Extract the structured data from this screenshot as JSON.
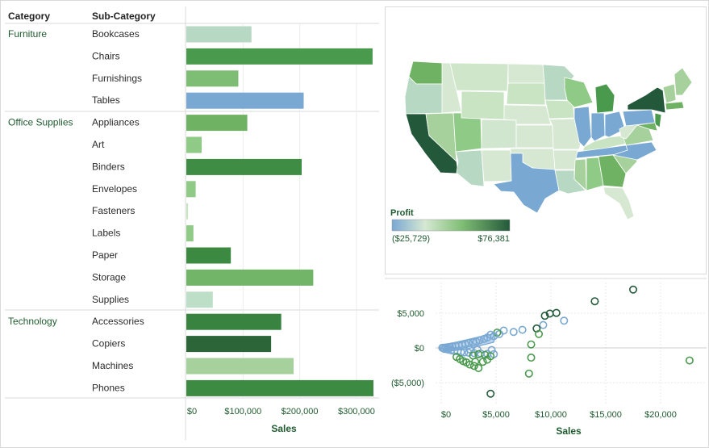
{
  "colors": {
    "negative": "#79a8d3",
    "mid": "#d6e8d2",
    "positive": "#23593a",
    "text_dark_green": "#1f5a2f"
  },
  "bar_table": {
    "headers": {
      "category": "Category",
      "sub_category": "Sub-Category"
    },
    "x_axis_title": "Sales",
    "x_ticks": [
      "$0",
      "$100,000",
      "$200,000",
      "$300,000"
    ]
  },
  "map": {
    "legend_title": "Profit",
    "legend_min": "($25,729)",
    "legend_max": "$76,381"
  },
  "scatter": {
    "x_axis_title": "Sales",
    "x_ticks": [
      "$0",
      "$5,000",
      "$10,000",
      "$15,000",
      "$20,000"
    ],
    "y_ticks": [
      "$5,000",
      "$0",
      "($5,000)"
    ]
  },
  "chart_data": [
    {
      "type": "bar",
      "title": "",
      "xlabel": "Sales",
      "xlim": [
        0,
        330000
      ],
      "color_encoding": "profit",
      "groups": [
        {
          "category": "Furniture",
          "rows": [
            {
              "sub": "Bookcases",
              "sales": 114880,
              "color": "#b7d8c2"
            },
            {
              "sub": "Chairs",
              "sales": 328449,
              "color": "#4a9a4e"
            },
            {
              "sub": "Furnishings",
              "sales": 91705,
              "color": "#7ebd74"
            },
            {
              "sub": "Tables",
              "sales": 206966,
              "color": "#79a8d3"
            }
          ]
        },
        {
          "category": "Office Supplies",
          "rows": [
            {
              "sub": "Appliances",
              "sales": 107532,
              "color": "#6fb263"
            },
            {
              "sub": "Art",
              "sales": 27119,
              "color": "#8fca86"
            },
            {
              "sub": "Binders",
              "sales": 203413,
              "color": "#3f8d45"
            },
            {
              "sub": "Envelopes",
              "sales": 16476,
              "color": "#8fca86"
            },
            {
              "sub": "Fasteners",
              "sales": 3024,
              "color": "#c9e4c2"
            },
            {
              "sub": "Labels",
              "sales": 12486,
              "color": "#8fca86"
            },
            {
              "sub": "Paper",
              "sales": 78479,
              "color": "#3c8942"
            },
            {
              "sub": "Storage",
              "sales": 223844,
              "color": "#72b568"
            },
            {
              "sub": "Supplies",
              "sales": 46674,
              "color": "#bedfc7"
            }
          ]
        },
        {
          "category": "Technology",
          "rows": [
            {
              "sub": "Accessories",
              "sales": 167380,
              "color": "#37833f"
            },
            {
              "sub": "Copiers",
              "sales": 149528,
              "color": "#2b6538"
            },
            {
              "sub": "Machines",
              "sales": 189239,
              "color": "#a6d19c"
            },
            {
              "sub": "Phones",
              "sales": 330007,
              "color": "#3d8a43"
            }
          ]
        }
      ]
    },
    {
      "type": "scatter",
      "title": "",
      "xlabel": "Sales",
      "ylabel": "",
      "xlim": [
        -300,
        23000
      ],
      "ylim": [
        -7000,
        9000
      ],
      "points": [
        {
          "x": 22638,
          "y": -1811,
          "c": "g"
        },
        {
          "x": 17500,
          "y": 8400,
          "c": "d"
        },
        {
          "x": 14000,
          "y": 6720,
          "c": "d"
        },
        {
          "x": 10500,
          "y": 5040,
          "c": "d"
        },
        {
          "x": 9900,
          "y": 4946,
          "c": "d"
        },
        {
          "x": 9450,
          "y": 4630,
          "c": "d"
        },
        {
          "x": 11200,
          "y": 3919,
          "c": "b"
        },
        {
          "x": 9300,
          "y": 3300,
          "c": "b"
        },
        {
          "x": 8700,
          "y": 2800,
          "c": "d"
        },
        {
          "x": 8900,
          "y": 2000,
          "c": "g"
        },
        {
          "x": 8200,
          "y": 500,
          "c": "g"
        },
        {
          "x": 8200,
          "y": -1400,
          "c": "g"
        },
        {
          "x": 8000,
          "y": -3700,
          "c": "g"
        },
        {
          "x": 4500,
          "y": -6600,
          "c": "d"
        },
        {
          "x": 7400,
          "y": 2600,
          "c": "b"
        },
        {
          "x": 6600,
          "y": 2300,
          "c": "b"
        },
        {
          "x": 5700,
          "y": 2500,
          "c": "b"
        },
        {
          "x": 5300,
          "y": 2000,
          "c": "b"
        },
        {
          "x": 5100,
          "y": 2200,
          "c": "g"
        },
        {
          "x": 4800,
          "y": 1700,
          "c": "b"
        },
        {
          "x": 4500,
          "y": 1900,
          "c": "b"
        },
        {
          "x": 4200,
          "y": 1500,
          "c": "b"
        },
        {
          "x": 3900,
          "y": 1300,
          "c": "b"
        },
        {
          "x": 3500,
          "y": 1100,
          "c": "b"
        },
        {
          "x": 3200,
          "y": 900,
          "c": "b"
        },
        {
          "x": 2900,
          "y": 800,
          "c": "b"
        },
        {
          "x": 2500,
          "y": 700,
          "c": "b"
        },
        {
          "x": 2200,
          "y": 550,
          "c": "b"
        },
        {
          "x": 1900,
          "y": 450,
          "c": "b"
        },
        {
          "x": 1600,
          "y": 380,
          "c": "b"
        },
        {
          "x": 1300,
          "y": 300,
          "c": "b"
        },
        {
          "x": 1000,
          "y": 220,
          "c": "b"
        },
        {
          "x": 800,
          "y": 150,
          "c": "b"
        },
        {
          "x": 600,
          "y": 100,
          "c": "b"
        },
        {
          "x": 400,
          "y": 60,
          "c": "b"
        },
        {
          "x": 200,
          "y": 30,
          "c": "b"
        },
        {
          "x": 100,
          "y": 10,
          "c": "b"
        },
        {
          "x": 300,
          "y": -150,
          "c": "b"
        },
        {
          "x": 600,
          "y": -250,
          "c": "b"
        },
        {
          "x": 900,
          "y": -350,
          "c": "b"
        },
        {
          "x": 1200,
          "y": -450,
          "c": "b"
        },
        {
          "x": 1500,
          "y": -500,
          "c": "b"
        },
        {
          "x": 1800,
          "y": -600,
          "c": "b"
        },
        {
          "x": 2100,
          "y": -650,
          "c": "b"
        },
        {
          "x": 2500,
          "y": -700,
          "c": "b"
        },
        {
          "x": 3000,
          "y": -750,
          "c": "b"
        },
        {
          "x": 3600,
          "y": -800,
          "c": "b"
        },
        {
          "x": 4200,
          "y": -850,
          "c": "b"
        },
        {
          "x": 4800,
          "y": -900,
          "c": "b"
        },
        {
          "x": 4600,
          "y": -300,
          "c": "b"
        },
        {
          "x": 3300,
          "y": -250,
          "c": "b"
        },
        {
          "x": 2600,
          "y": -200,
          "c": "b"
        },
        {
          "x": 1400,
          "y": -1300,
          "c": "g"
        },
        {
          "x": 1700,
          "y": -1600,
          "c": "g"
        },
        {
          "x": 2000,
          "y": -1900,
          "c": "g"
        },
        {
          "x": 2300,
          "y": -2100,
          "c": "g"
        },
        {
          "x": 2600,
          "y": -2400,
          "c": "g"
        },
        {
          "x": 3000,
          "y": -2600,
          "c": "g"
        },
        {
          "x": 3100,
          "y": -2000,
          "c": "g"
        },
        {
          "x": 3400,
          "y": -2900,
          "c": "g"
        },
        {
          "x": 3800,
          "y": -2000,
          "c": "g"
        },
        {
          "x": 4200,
          "y": -1700,
          "c": "g"
        },
        {
          "x": 4500,
          "y": -1200,
          "c": "g"
        },
        {
          "x": 4000,
          "y": -1000,
          "c": "g"
        },
        {
          "x": 3400,
          "y": -900,
          "c": "g"
        },
        {
          "x": 2900,
          "y": -1100,
          "c": "g"
        }
      ]
    }
  ]
}
